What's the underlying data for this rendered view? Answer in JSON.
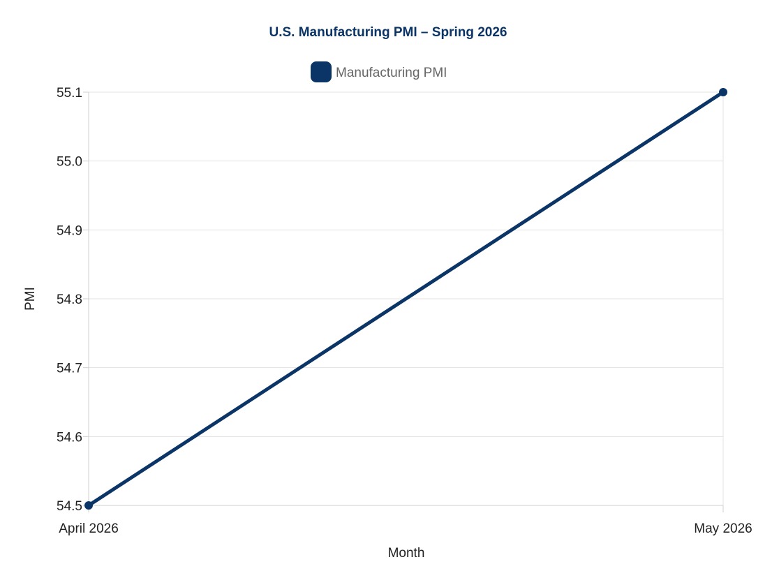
{
  "chart_data": {
    "type": "line",
    "title": "U.S. Manufacturing PMI – Spring 2026",
    "categories": [
      "April 2026",
      "May 2026"
    ],
    "series": [
      {
        "name": "Manufacturing PMI",
        "values": [
          54.5,
          55.1
        ],
        "color": "#0b3566"
      }
    ],
    "xlabel": "Month",
    "ylabel": "PMI",
    "ylim": [
      54.5,
      55.1
    ],
    "yticks": [
      "54.5",
      "54.6",
      "54.7",
      "54.8",
      "54.9",
      "55.0",
      "55.1"
    ],
    "grid": true,
    "legend_position": "top-center"
  },
  "colors": {
    "title": "#0b3566",
    "series": "#0b3566"
  }
}
